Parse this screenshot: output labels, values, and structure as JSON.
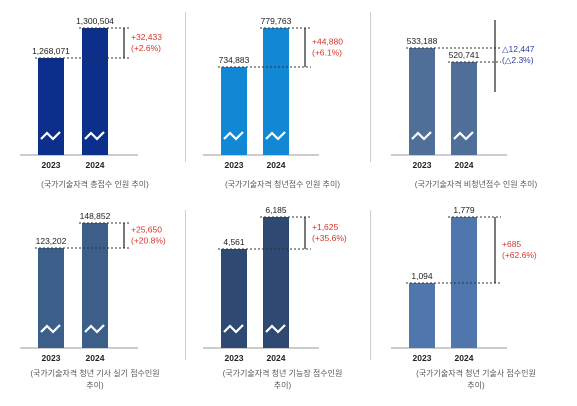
{
  "chart_data": [
    {
      "type": "bar",
      "categories": [
        "2023",
        "2024"
      ],
      "values": [
        1268071,
        1300504
      ],
      "value_labels": [
        "1,268,071",
        "1,300,504"
      ],
      "change_label": "+32,433",
      "pct_label": "(+2.6%)",
      "caption": "(국가기술자격 총접수 인원 추이)",
      "bar_colors": [
        "#0b2f8a",
        "#0b2f8a"
      ],
      "change_color": "#d9342b",
      "axis_break": true
    },
    {
      "type": "bar",
      "categories": [
        "2023",
        "2024"
      ],
      "values": [
        734883,
        779763
      ],
      "value_labels": [
        "734,883",
        "779,763"
      ],
      "change_label": "+44,880",
      "pct_label": "(+6.1%)",
      "caption": "(국가기술자격 청년접수 인원 추이)",
      "bar_colors": [
        "#1287d3",
        "#1287d3"
      ],
      "change_color": "#d9342b",
      "axis_break": true
    },
    {
      "type": "bar",
      "categories": [
        "2023",
        "2024"
      ],
      "values": [
        533188,
        520741
      ],
      "value_labels": [
        "533,188",
        "520,741"
      ],
      "change_label": "△12,447",
      "pct_label": "(△2.3%)",
      "caption": "(국가기술자격 비청년접수 인원 추이)",
      "bar_colors": [
        "#4f6f98",
        "#4f6f98"
      ],
      "change_color": "#2b3fa0",
      "axis_break": true
    },
    {
      "type": "bar",
      "categories": [
        "2023",
        "2024"
      ],
      "values": [
        123202,
        148852
      ],
      "value_labels": [
        "123,202",
        "148,852"
      ],
      "change_label": "+25,650",
      "pct_label": "(+20.8%)",
      "caption": "(국가기술자격 청년 기사 실기 접수인원\n추이)",
      "bar_colors": [
        "#3c5f8a",
        "#3c5f8a"
      ],
      "change_color": "#d9342b",
      "axis_break": true
    },
    {
      "type": "bar",
      "categories": [
        "2023",
        "2024"
      ],
      "values": [
        4561,
        6185
      ],
      "value_labels": [
        "4,561",
        "6,185"
      ],
      "change_label": "+1,625",
      "pct_label": "(+35.6%)",
      "caption": "(국가기술자격 청년 기능장 접수인원\n추이)",
      "bar_colors": [
        "#2e4a72",
        "#2e4a72"
      ],
      "change_color": "#d9342b",
      "axis_break": true
    },
    {
      "type": "bar",
      "categories": [
        "2023",
        "2024"
      ],
      "values": [
        1094,
        1779
      ],
      "value_labels": [
        "1,094",
        "1,779"
      ],
      "change_label": "+685",
      "pct_label": "(+62.6%)",
      "caption": "(국가기술자격 청년 기술사 접수인원\n추이)",
      "bar_colors": [
        "#4f77ad",
        "#4f77ad"
      ],
      "change_color": "#d9342b",
      "axis_break": false
    }
  ]
}
